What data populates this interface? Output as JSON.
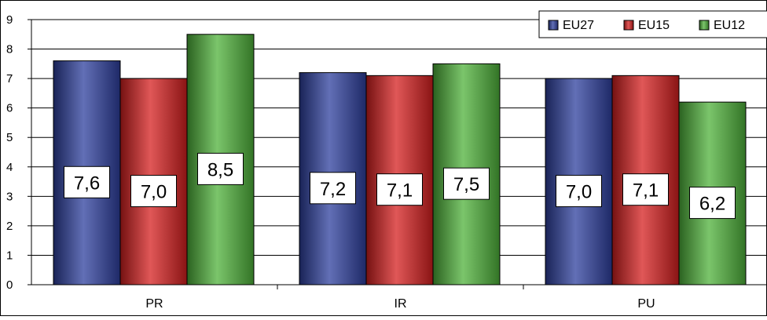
{
  "chart_data": {
    "type": "bar",
    "categories": [
      "PR",
      "IR",
      "PU"
    ],
    "series": [
      {
        "name": "EU27",
        "values": [
          7.6,
          7.2,
          7.0
        ],
        "labels": [
          "7,6",
          "7,2",
          "7,0"
        ],
        "color": "#2e3f9e"
      },
      {
        "name": "EU15",
        "values": [
          7.0,
          7.1,
          7.1
        ],
        "labels": [
          "7,0",
          "7,1",
          "7,1"
        ],
        "color": "#d51f1f"
      },
      {
        "name": "EU12",
        "values": [
          8.5,
          7.5,
          6.2
        ],
        "labels": [
          "8,5",
          "7,5",
          "6,2"
        ],
        "color": "#4fb23a"
      }
    ],
    "ylim": [
      0,
      9
    ],
    "yticks": [
      "0",
      "1",
      "2",
      "3",
      "4",
      "5",
      "6",
      "7",
      "8",
      "9"
    ],
    "grid": true,
    "legend_position": "top-right",
    "title": "",
    "xlabel": "",
    "ylabel": ""
  }
}
